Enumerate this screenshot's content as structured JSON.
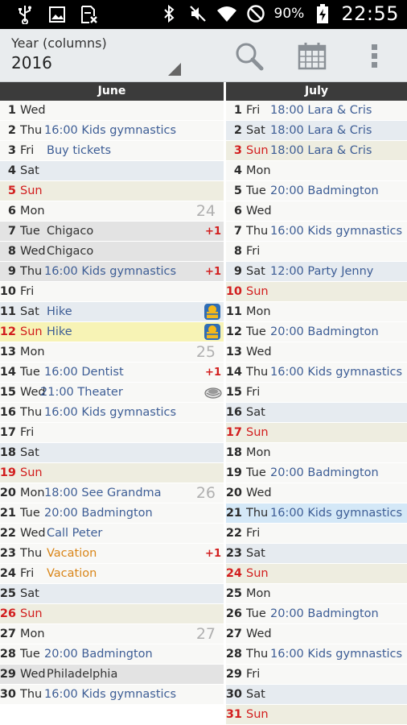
{
  "status_bar": {
    "battery_percent": "90%",
    "time": "22:55"
  },
  "toolbar": {
    "view_label": "Year (columns)",
    "year": "2016"
  },
  "months": [
    {
      "name": "June",
      "days": [
        {
          "num": "1",
          "dow": "Wed",
          "bg": "w"
        },
        {
          "num": "2",
          "dow": "Thu",
          "bg": "w",
          "event": "16:00 Kids gymnastics"
        },
        {
          "num": "3",
          "dow": "Fri",
          "bg": "w",
          "event": "Buy tickets"
        },
        {
          "num": "4",
          "dow": "Sat",
          "bg": "sat"
        },
        {
          "num": "5",
          "dow": "Sun",
          "bg": "sun",
          "red": true
        },
        {
          "num": "6",
          "dow": "Mon",
          "bg": "w",
          "week": "24"
        },
        {
          "num": "7",
          "dow": "Tue",
          "bg": "grey",
          "event": "Chigaco",
          "event_style": "dark",
          "plus": "+1"
        },
        {
          "num": "8",
          "dow": "Wed",
          "bg": "grey",
          "event": "Chigaco",
          "event_style": "dark"
        },
        {
          "num": "9",
          "dow": "Thu",
          "bg": "grey",
          "event": "16:00 Kids gymnastics",
          "plus": "+1"
        },
        {
          "num": "10",
          "dow": "Fri",
          "bg": "w"
        },
        {
          "num": "11",
          "dow": "Sat",
          "bg": "sat",
          "event": "Hike",
          "icon": "hike-icon"
        },
        {
          "num": "12",
          "dow": "Sun",
          "bg": "yellow",
          "red": true,
          "event": "Hike",
          "icon": "hike-icon"
        },
        {
          "num": "13",
          "dow": "Mon",
          "bg": "w",
          "week": "25"
        },
        {
          "num": "14",
          "dow": "Tue",
          "bg": "w",
          "event": "16:00 Dentist",
          "plus": "+1"
        },
        {
          "num": "15",
          "dow": "Wed",
          "bg": "w",
          "event": "21:00 Theater",
          "icon": "theater-icon"
        },
        {
          "num": "16",
          "dow": "Thu",
          "bg": "w",
          "event": "16:00 Kids gymnastics"
        },
        {
          "num": "17",
          "dow": "Fri",
          "bg": "w"
        },
        {
          "num": "18",
          "dow": "Sat",
          "bg": "sat"
        },
        {
          "num": "19",
          "dow": "Sun",
          "bg": "sun",
          "red": true
        },
        {
          "num": "20",
          "dow": "Mon",
          "bg": "w",
          "event": "18:00 See Grandma",
          "week": "26"
        },
        {
          "num": "21",
          "dow": "Tue",
          "bg": "w",
          "event": "20:00 Badmington"
        },
        {
          "num": "22",
          "dow": "Wed",
          "bg": "w",
          "event": "Call Peter"
        },
        {
          "num": "23",
          "dow": "Thu",
          "bg": "w",
          "event": "Vacation",
          "event_style": "orange",
          "plus": "+1"
        },
        {
          "num": "24",
          "dow": "Fri",
          "bg": "w",
          "event": "Vacation",
          "event_style": "orange"
        },
        {
          "num": "25",
          "dow": "Sat",
          "bg": "sat"
        },
        {
          "num": "26",
          "dow": "Sun",
          "bg": "sun",
          "red": true
        },
        {
          "num": "27",
          "dow": "Mon",
          "bg": "w",
          "week": "27"
        },
        {
          "num": "28",
          "dow": "Tue",
          "bg": "w",
          "event": "20:00 Badmington"
        },
        {
          "num": "29",
          "dow": "Wed",
          "bg": "grey",
          "event": "Philadelphia",
          "event_style": "dark"
        },
        {
          "num": "30",
          "dow": "Thu",
          "bg": "w",
          "event": "16:00 Kids gymnastics"
        }
      ]
    },
    {
      "name": "July",
      "days": [
        {
          "num": "1",
          "dow": "Fri",
          "bg": "w",
          "event": "18:00 Lara & Cris"
        },
        {
          "num": "2",
          "dow": "Sat",
          "bg": "sat",
          "event": "18:00 Lara & Cris"
        },
        {
          "num": "3",
          "dow": "Sun",
          "bg": "sun",
          "red": true,
          "event": "18:00 Lara & Cris"
        },
        {
          "num": "4",
          "dow": "Mon",
          "bg": "w"
        },
        {
          "num": "5",
          "dow": "Tue",
          "bg": "w",
          "event": "20:00 Badmington"
        },
        {
          "num": "6",
          "dow": "Wed",
          "bg": "w"
        },
        {
          "num": "7",
          "dow": "Thu",
          "bg": "w",
          "event": "16:00 Kids gymnastics"
        },
        {
          "num": "8",
          "dow": "Fri",
          "bg": "w"
        },
        {
          "num": "9",
          "dow": "Sat",
          "bg": "sat",
          "event": "12:00 Party Jenny"
        },
        {
          "num": "10",
          "dow": "Sun",
          "bg": "sun",
          "red": true
        },
        {
          "num": "11",
          "dow": "Mon",
          "bg": "w"
        },
        {
          "num": "12",
          "dow": "Tue",
          "bg": "w",
          "event": "20:00 Badmington"
        },
        {
          "num": "13",
          "dow": "Wed",
          "bg": "w"
        },
        {
          "num": "14",
          "dow": "Thu",
          "bg": "w",
          "event": "16:00 Kids gymnastics"
        },
        {
          "num": "15",
          "dow": "Fri",
          "bg": "w"
        },
        {
          "num": "16",
          "dow": "Sat",
          "bg": "sat"
        },
        {
          "num": "17",
          "dow": "Sun",
          "bg": "sun",
          "red": true
        },
        {
          "num": "18",
          "dow": "Mon",
          "bg": "w"
        },
        {
          "num": "19",
          "dow": "Tue",
          "bg": "w",
          "event": "20:00 Badmington"
        },
        {
          "num": "20",
          "dow": "Wed",
          "bg": "w"
        },
        {
          "num": "21",
          "dow": "Thu",
          "bg": "blue",
          "event": "16:00 Kids gymnastics",
          "today": true
        },
        {
          "num": "22",
          "dow": "Fri",
          "bg": "w"
        },
        {
          "num": "23",
          "dow": "Sat",
          "bg": "sat"
        },
        {
          "num": "24",
          "dow": "Sun",
          "bg": "sun",
          "red": true
        },
        {
          "num": "25",
          "dow": "Mon",
          "bg": "w"
        },
        {
          "num": "26",
          "dow": "Tue",
          "bg": "w",
          "event": "20:00 Badmington"
        },
        {
          "num": "27",
          "dow": "Wed",
          "bg": "w"
        },
        {
          "num": "28",
          "dow": "Thu",
          "bg": "w",
          "event": "16:00 Kids gymnastics"
        },
        {
          "num": "29",
          "dow": "Fri",
          "bg": "w"
        },
        {
          "num": "30",
          "dow": "Sat",
          "bg": "sat"
        },
        {
          "num": "31",
          "dow": "Sun",
          "bg": "sun",
          "red": true
        }
      ]
    }
  ],
  "colors": {
    "event_text": "#3d5d95",
    "sunday_red": "#d21e1e",
    "vacation_orange": "#d98518",
    "today_highlight": "#d4e8f7"
  }
}
